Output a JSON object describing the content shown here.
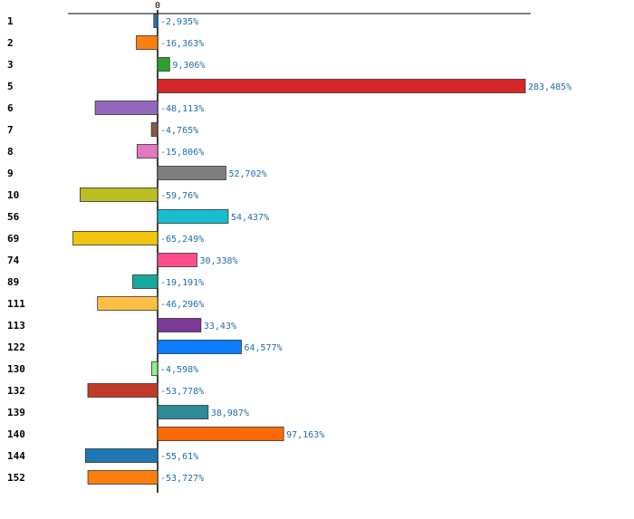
{
  "chart_data": {
    "type": "bar",
    "orientation": "horizontal",
    "zero_tick_label": "0",
    "categories": [
      "1",
      "2",
      "3",
      "5",
      "6",
      "7",
      "8",
      "9",
      "10",
      "56",
      "69",
      "74",
      "89",
      "111",
      "113",
      "122",
      "130",
      "132",
      "139",
      "140",
      "144",
      "152"
    ],
    "values": [
      -2.935,
      -16.363,
      9.306,
      283.485,
      -48.113,
      -4.765,
      -15.806,
      52.702,
      -59.76,
      54.437,
      -65.249,
      30.338,
      -19.191,
      -46.296,
      33.43,
      64.577,
      -4.598,
      -53.778,
      38.987,
      97.163,
      -55.61,
      -53.727
    ],
    "value_labels": [
      "-2,935%",
      "-16,363%",
      "9,306%",
      "283,485%",
      "-48,113%",
      "-4,765%",
      "-15,806%",
      "52,702%",
      "-59,76%",
      "54,437%",
      "-65,249%",
      "30,338%",
      "-19,191%",
      "-46,296%",
      "33,43%",
      "64,577%",
      "-4,598%",
      "-53,778%",
      "38,987%",
      "97,163%",
      "-55,61%",
      "-53,727%"
    ],
    "colors": [
      "#1f77b4",
      "#ff7f0e",
      "#2ca02c",
      "#d62728",
      "#9467bd",
      "#8c564b",
      "#e377c2",
      "#7f7f7f",
      "#bcbd22",
      "#17becf",
      "#f1c40f",
      "#ff4f8b",
      "#17a89e",
      "#ffbf47",
      "#7b3a96",
      "#0a7cff",
      "#90ee90",
      "#c0392b",
      "#2e8b9a",
      "#ff6a00",
      "#1f77b4",
      "#ff7f0e"
    ],
    "xlim": [
      -69,
      288
    ],
    "grid": false,
    "legend": "none"
  }
}
